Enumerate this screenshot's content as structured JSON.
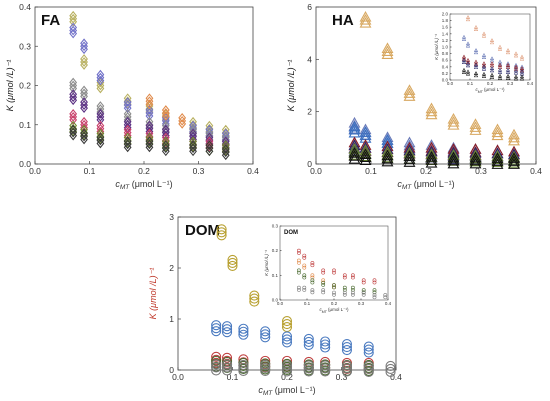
{
  "chart_data": [
    {
      "panel": "FA",
      "type": "scatter",
      "title": "FA",
      "xlabel": "cMT (μmol L⁻¹)",
      "ylabel": "K (μmol /L)⁻¹",
      "ylabel_color": "#222222",
      "xlim": [
        0.0,
        0.4
      ],
      "ylim": [
        0.0,
        0.4
      ],
      "xticks": [
        "0.0",
        "0.1",
        "0.2",
        "0.3",
        "0.4"
      ],
      "yticks": [
        "0.0",
        "0.1",
        "0.2",
        "0.3",
        "0.4"
      ],
      "marker": "diamond",
      "grid": false,
      "series": [
        {
          "color": "#b8b060",
          "x": [
            0.07,
            0.09,
            0.12,
            0.17,
            0.21,
            0.24,
            0.29,
            0.32,
            0.35
          ],
          "y": [
            0.37,
            0.26,
            0.2,
            0.16,
            0.14,
            0.12,
            0.1,
            0.09,
            0.08
          ]
        },
        {
          "color": "#7070c8",
          "x": [
            0.07,
            0.09,
            0.12,
            0.17,
            0.21,
            0.24,
            0.29,
            0.32,
            0.35
          ],
          "y": [
            0.34,
            0.3,
            0.22,
            0.15,
            0.13,
            0.11,
            0.09,
            0.08,
            0.07
          ]
        },
        {
          "color": "#8c8c8c",
          "x": [
            0.07,
            0.09,
            0.12,
            0.17,
            0.21,
            0.24,
            0.29,
            0.32,
            0.35
          ],
          "y": [
            0.2,
            0.18,
            0.14,
            0.12,
            0.1,
            0.09,
            0.08,
            0.07,
            0.06
          ]
        },
        {
          "color": "#5a2f82",
          "x": [
            0.07,
            0.09,
            0.12,
            0.17,
            0.21,
            0.24,
            0.29,
            0.32,
            0.35
          ],
          "y": [
            0.17,
            0.15,
            0.12,
            0.1,
            0.09,
            0.08,
            0.07,
            0.06,
            0.05
          ]
        },
        {
          "color": "#c8406a",
          "x": [
            0.07,
            0.09,
            0.12,
            0.17,
            0.21,
            0.24,
            0.29,
            0.32,
            0.35
          ],
          "y": [
            0.12,
            0.1,
            0.09,
            0.08,
            0.07,
            0.06,
            0.05,
            0.05,
            0.04
          ]
        },
        {
          "color": "#6d8a2e",
          "x": [
            0.07,
            0.09,
            0.12,
            0.17,
            0.21,
            0.24,
            0.29,
            0.32,
            0.35
          ],
          "y": [
            0.09,
            0.08,
            0.07,
            0.06,
            0.06,
            0.05,
            0.05,
            0.04,
            0.04
          ]
        },
        {
          "color": "#3a3a3a",
          "x": [
            0.07,
            0.09,
            0.12,
            0.17,
            0.21,
            0.24,
            0.29,
            0.32,
            0.35
          ],
          "y": [
            0.08,
            0.07,
            0.06,
            0.05,
            0.05,
            0.04,
            0.04,
            0.04,
            0.03
          ]
        },
        {
          "color": "#e08a4a",
          "x": [
            0.21,
            0.24,
            0.27
          ],
          "y": [
            0.16,
            0.13,
            0.11
          ]
        }
      ]
    },
    {
      "panel": "HA",
      "type": "scatter",
      "title": "HA",
      "xlabel": "cMT (μmol L⁻¹)",
      "ylabel": "K (μmol /L)⁻¹",
      "ylabel_color": "#222222",
      "xlim": [
        0.0,
        0.4
      ],
      "ylim": [
        0,
        6
      ],
      "xticks": [
        "0.0",
        "0.1",
        "0.2",
        "0.3",
        "0.4"
      ],
      "yticks": [
        "0",
        "2",
        "4",
        "6"
      ],
      "marker": "triangle",
      "grid": false,
      "series": [
        {
          "color": "#d8a860",
          "x": [
            0.09,
            0.13,
            0.17,
            0.21,
            0.25,
            0.29,
            0.33,
            0.36
          ],
          "y": [
            5.5,
            4.3,
            2.7,
            2.0,
            1.6,
            1.4,
            1.2,
            1.0
          ]
        },
        {
          "color": "#6a7ab8",
          "x": [
            0.07,
            0.09,
            0.13,
            0.17,
            0.21,
            0.25,
            0.29,
            0.33,
            0.36
          ],
          "y": [
            1.45,
            1.2,
            0.9,
            0.7,
            0.6,
            0.5,
            0.45,
            0.4,
            0.35
          ]
        },
        {
          "color": "#3a6fc0",
          "x": [
            0.07,
            0.09,
            0.13
          ],
          "y": [
            1.3,
            1.1,
            0.8
          ]
        },
        {
          "color": "#8a1a22",
          "x": [
            0.07,
            0.09,
            0.13,
            0.17,
            0.21,
            0.25,
            0.29,
            0.33,
            0.36
          ],
          "y": [
            0.7,
            0.6,
            0.55,
            0.5,
            0.5,
            0.45,
            0.45,
            0.4,
            0.35
          ]
        },
        {
          "color": "#2a2a6a",
          "x": [
            0.07,
            0.09,
            0.13,
            0.17,
            0.21,
            0.25,
            0.29,
            0.33,
            0.36
          ],
          "y": [
            0.6,
            0.5,
            0.45,
            0.4,
            0.35,
            0.3,
            0.3,
            0.28,
            0.25
          ]
        },
        {
          "color": "#6a8a30",
          "x": [
            0.07,
            0.09,
            0.13,
            0.17,
            0.21,
            0.25,
            0.29,
            0.33,
            0.36
          ],
          "y": [
            0.45,
            0.4,
            0.35,
            0.3,
            0.25,
            0.22,
            0.2,
            0.18,
            0.15
          ]
        },
        {
          "color": "#111111",
          "x": [
            0.07,
            0.09,
            0.13,
            0.17,
            0.21,
            0.25,
            0.29,
            0.33,
            0.36
          ],
          "y": [
            0.3,
            0.25,
            0.2,
            0.18,
            0.15,
            0.12,
            0.12,
            0.1,
            0.1
          ]
        }
      ],
      "inset": {
        "title": "",
        "xlabel": "cMT (μmol L⁻¹)",
        "ylabel": "K (μmol /L)⁻¹",
        "xlim": [
          0.0,
          0.4
        ],
        "ylim": [
          0.0,
          2.0
        ],
        "xticks": [
          "0.0",
          "0.1",
          "0.2",
          "0.3",
          "0.4"
        ],
        "yticks": [
          "0.0",
          "0.2",
          "0.4",
          "0.6",
          "0.8",
          "1.0",
          "1.2",
          "1.4",
          "1.6",
          "1.8",
          "2.0"
        ],
        "marker": "triangle",
        "series": [
          {
            "color": "#e0a080",
            "x": [
              0.09,
              0.13,
              0.17,
              0.21,
              0.25,
              0.29,
              0.33,
              0.36
            ],
            "y": [
              1.9,
              1.6,
              1.4,
              1.2,
              1.0,
              0.9,
              0.8,
              0.7
            ]
          },
          {
            "color": "#6a7ab8",
            "x": [
              0.07,
              0.09,
              0.13,
              0.17,
              0.21,
              0.25,
              0.29,
              0.33,
              0.36
            ],
            "y": [
              1.3,
              1.1,
              0.9,
              0.75,
              0.65,
              0.55,
              0.5,
              0.45,
              0.4
            ]
          },
          {
            "color": "#8a1a22",
            "x": [
              0.07,
              0.09,
              0.13,
              0.17,
              0.21,
              0.25,
              0.29,
              0.33,
              0.36
            ],
            "y": [
              0.7,
              0.6,
              0.55,
              0.5,
              0.5,
              0.45,
              0.45,
              0.4,
              0.35
            ]
          },
          {
            "color": "#2a2a6a",
            "x": [
              0.07,
              0.09,
              0.13,
              0.17,
              0.21,
              0.25,
              0.29,
              0.33,
              0.36
            ],
            "y": [
              0.6,
              0.5,
              0.45,
              0.4,
              0.35,
              0.3,
              0.3,
              0.28,
              0.25
            ]
          },
          {
            "color": "#111111",
            "x": [
              0.07,
              0.09,
              0.13,
              0.17,
              0.21,
              0.25,
              0.29,
              0.33,
              0.36
            ],
            "y": [
              0.3,
              0.25,
              0.2,
              0.18,
              0.15,
              0.12,
              0.12,
              0.1,
              0.1
            ]
          }
        ]
      }
    },
    {
      "panel": "DOM",
      "type": "scatter",
      "title": "DOM",
      "xlabel": "cMT (μmol L⁻¹)",
      "ylabel": "K (μmol /L)⁻¹",
      "ylabel_color": "#c0392b",
      "xlim": [
        0.0,
        0.4
      ],
      "ylim": [
        0,
        3
      ],
      "xticks": [
        "0.0",
        "0.1",
        "0.2",
        "0.3",
        "0.4"
      ],
      "yticks": [
        "0",
        "1",
        "2",
        "3"
      ],
      "marker": "circle",
      "grid": false,
      "series": [
        {
          "color": "#b8a030",
          "x": [
            0.08,
            0.1,
            0.14,
            0.2
          ],
          "y": [
            2.7,
            2.1,
            1.4,
            0.9
          ]
        },
        {
          "color": "#4a7ac0",
          "x": [
            0.07,
            0.09,
            0.12,
            0.16,
            0.2,
            0.24,
            0.27,
            0.31,
            0.35
          ],
          "y": [
            0.82,
            0.8,
            0.75,
            0.7,
            0.6,
            0.55,
            0.5,
            0.45,
            0.4
          ]
        },
        {
          "color": "#c04040",
          "x": [
            0.07,
            0.09,
            0.12,
            0.16,
            0.2,
            0.24,
            0.27,
            0.31,
            0.35
          ],
          "y": [
            0.2,
            0.18,
            0.15,
            0.12,
            0.12,
            0.1,
            0.1,
            0.08,
            0.08
          ]
        },
        {
          "color": "#4a6a30",
          "x": [
            0.07,
            0.09,
            0.12,
            0.16,
            0.2,
            0.24,
            0.27,
            0.31,
            0.35
          ],
          "y": [
            0.12,
            0.1,
            0.08,
            0.07,
            0.06,
            0.05,
            0.05,
            0.04,
            0.04
          ]
        },
        {
          "color": "#7a7a7a",
          "x": [
            0.07,
            0.09,
            0.12,
            0.16,
            0.2,
            0.24,
            0.27,
            0.31,
            0.35,
            0.39
          ],
          "y": [
            0.05,
            0.05,
            0.04,
            0.04,
            0.03,
            0.03,
            0.03,
            0.03,
            0.02,
            0.02
          ]
        }
      ],
      "inset": {
        "title": "DOM",
        "xlabel": "cMT (μmol L⁻¹)",
        "ylabel": "K (μmol /L)⁻¹",
        "xlim": [
          0.0,
          0.4
        ],
        "ylim": [
          0.0,
          0.3
        ],
        "xticks": [
          "0.0",
          "0.1",
          "0.2",
          "0.3",
          "0.4"
        ],
        "yticks": [
          "0.0",
          "0.1",
          "0.2",
          "0.3"
        ],
        "marker": "circle",
        "series": [
          {
            "color": "#c04040",
            "x": [
              0.07,
              0.09,
              0.12,
              0.16,
              0.2,
              0.24,
              0.27,
              0.31,
              0.35
            ],
            "y": [
              0.2,
              0.18,
              0.15,
              0.12,
              0.12,
              0.1,
              0.1,
              0.08,
              0.08
            ]
          },
          {
            "color": "#e08a4a",
            "x": [
              0.07,
              0.09,
              0.12,
              0.16,
              0.2
            ],
            "y": [
              0.16,
              0.14,
              0.1,
              0.08,
              0.06
            ]
          },
          {
            "color": "#4a6a30",
            "x": [
              0.07,
              0.09,
              0.12,
              0.16,
              0.2,
              0.24,
              0.27,
              0.31,
              0.35
            ],
            "y": [
              0.12,
              0.1,
              0.08,
              0.07,
              0.06,
              0.05,
              0.05,
              0.04,
              0.04
            ]
          },
          {
            "color": "#7a7a7a",
            "x": [
              0.07,
              0.09,
              0.12,
              0.16,
              0.2,
              0.24,
              0.27,
              0.31,
              0.35,
              0.39
            ],
            "y": [
              0.05,
              0.05,
              0.04,
              0.04,
              0.03,
              0.03,
              0.03,
              0.03,
              0.02,
              0.02
            ]
          }
        ]
      }
    }
  ]
}
